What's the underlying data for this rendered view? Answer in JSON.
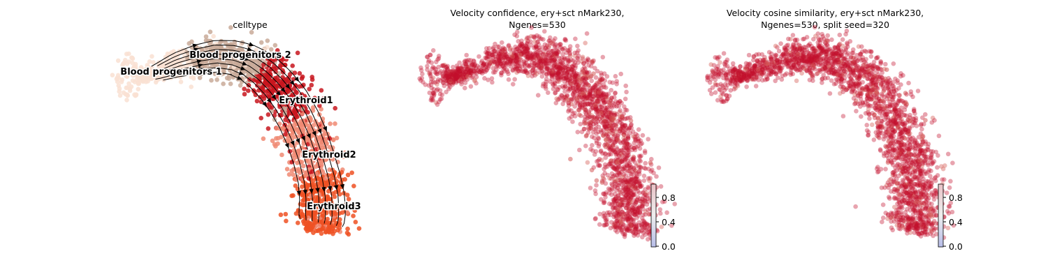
{
  "chart_data": [
    {
      "type": "scatter",
      "title": "celltype",
      "subtitle": "",
      "stream_arrows": true,
      "clusters": [
        {
          "name": "Blood progenitors 1",
          "color": "#f9e0d2"
        },
        {
          "name": "Blood progenitors 2",
          "color": "#c9aa99"
        },
        {
          "name": "Erythroid1",
          "color": "#c8161e"
        },
        {
          "name": "Erythroid2",
          "color": "#f08a73"
        },
        {
          "name": "Erythroid3",
          "color": "#ef5123"
        }
      ]
    },
    {
      "type": "scatter",
      "title": "Velocity confidence, ery+sct nMark230,",
      "subtitle": "Ngenes=530",
      "colormap": "coolwarm",
      "colorbar": {
        "ticks": [
          "0.0",
          "0.4",
          "0.8"
        ],
        "range": [
          0,
          1
        ]
      },
      "dominant_value": 0.95,
      "point_color": "#c2102d"
    },
    {
      "type": "scatter",
      "title": "Velocity cosine similarity, ery+sct nMark230,",
      "subtitle": "Ngenes=530, split seed=320",
      "colormap": "coolwarm",
      "colorbar": {
        "ticks": [
          "0.0",
          "0.4",
          "0.8"
        ],
        "range": [
          0,
          1
        ]
      },
      "dominant_value": 0.95,
      "point_color": "#c2102d"
    }
  ]
}
